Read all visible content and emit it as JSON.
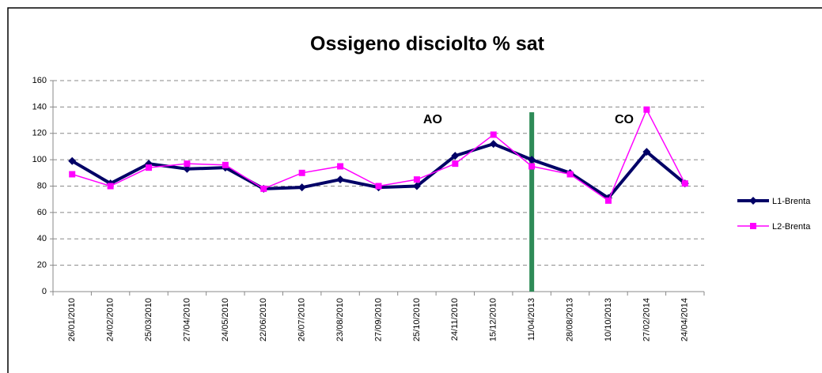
{
  "chart_data": {
    "type": "line",
    "title": "Ossigeno disciolto % sat",
    "categories": [
      "26/01/2010",
      "24/02/2010",
      "25/03/2010",
      "27/04/2010",
      "24/05/2010",
      "22/06/2010",
      "26/07/2010",
      "23/08/2010",
      "27/09/2010",
      "25/10/2010",
      "24/11/2010",
      "15/12/2010",
      "11/04/2013",
      "28/08/2013",
      "10/10/2013",
      "27/02/2014",
      "24/04/2014"
    ],
    "series": [
      {
        "name": "L1-Brenta",
        "color": "#000066",
        "values": [
          99,
          82,
          97,
          93,
          94,
          78,
          79,
          85,
          79,
          80,
          103,
          112,
          100,
          90,
          71,
          106,
          82
        ]
      },
      {
        "name": "L2-Brenta",
        "color": "#ff00ff",
        "values": [
          89,
          80,
          94,
          97,
          96,
          78,
          90,
          95,
          80,
          85,
          97,
          119,
          95,
          89,
          69,
          138,
          82
        ]
      }
    ],
    "bars": {
      "color": "#2e8b57",
      "values": [
        null,
        null,
        null,
        null,
        null,
        null,
        null,
        null,
        null,
        null,
        null,
        null,
        136,
        null,
        null,
        null,
        null
      ]
    },
    "annotations": [
      {
        "text": "AO",
        "category": 9,
        "y": 135
      },
      {
        "text": "CO",
        "category": 14,
        "y": 135
      }
    ],
    "ylim": [
      0,
      160
    ],
    "yticks": [
      0,
      20,
      40,
      60,
      80,
      100,
      120,
      140,
      160
    ],
    "grid": true
  }
}
